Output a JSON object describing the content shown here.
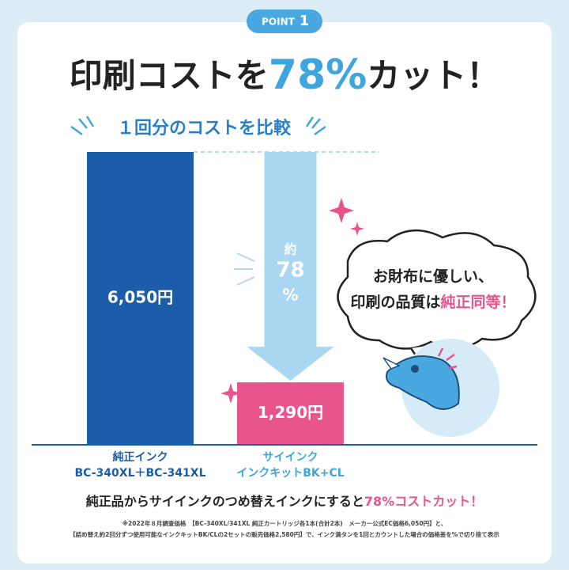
{
  "chart_data": {
    "type": "bar",
    "badge": [
      "POINT",
      "1"
    ],
    "title_parts": [
      "印刷コストを",
      "78%",
      "カット！"
    ],
    "subtitle": "１回分のコストを比較",
    "categories": [
      "純正インク",
      "サイインク"
    ],
    "category_sublabels": [
      "BC-340XL＋BC-341XL",
      "インクキットBK+CL"
    ],
    "values": [
      6050,
      1290
    ],
    "value_labels": [
      "6,050円",
      "1,290円"
    ],
    "colors": [
      "#1b5da8",
      "#e8548c"
    ],
    "ylim": [
      0,
      6050
    ],
    "arrow_label": [
      "約",
      "78",
      "%"
    ],
    "bubble": [
      "お財布に優しい、",
      "印刷の品質は",
      "純正同等！"
    ],
    "summary": [
      "純正品からサイインクのつめ替えインクにすると",
      "78%コストカット！"
    ],
    "footnotes": [
      "※2022年８月調査価格　【BC-340XL/341XL 純正カートリッジ各1本(合計2本)　メーカー公式EC価格6,050円】と、",
      "【詰め替え約2回分ずつ使用可能なインクキットBK/CLの2セットの販売価格2,580円】で、インク満タンを1回とカウントした場合の価格差を%で切り捨て表示"
    ]
  }
}
